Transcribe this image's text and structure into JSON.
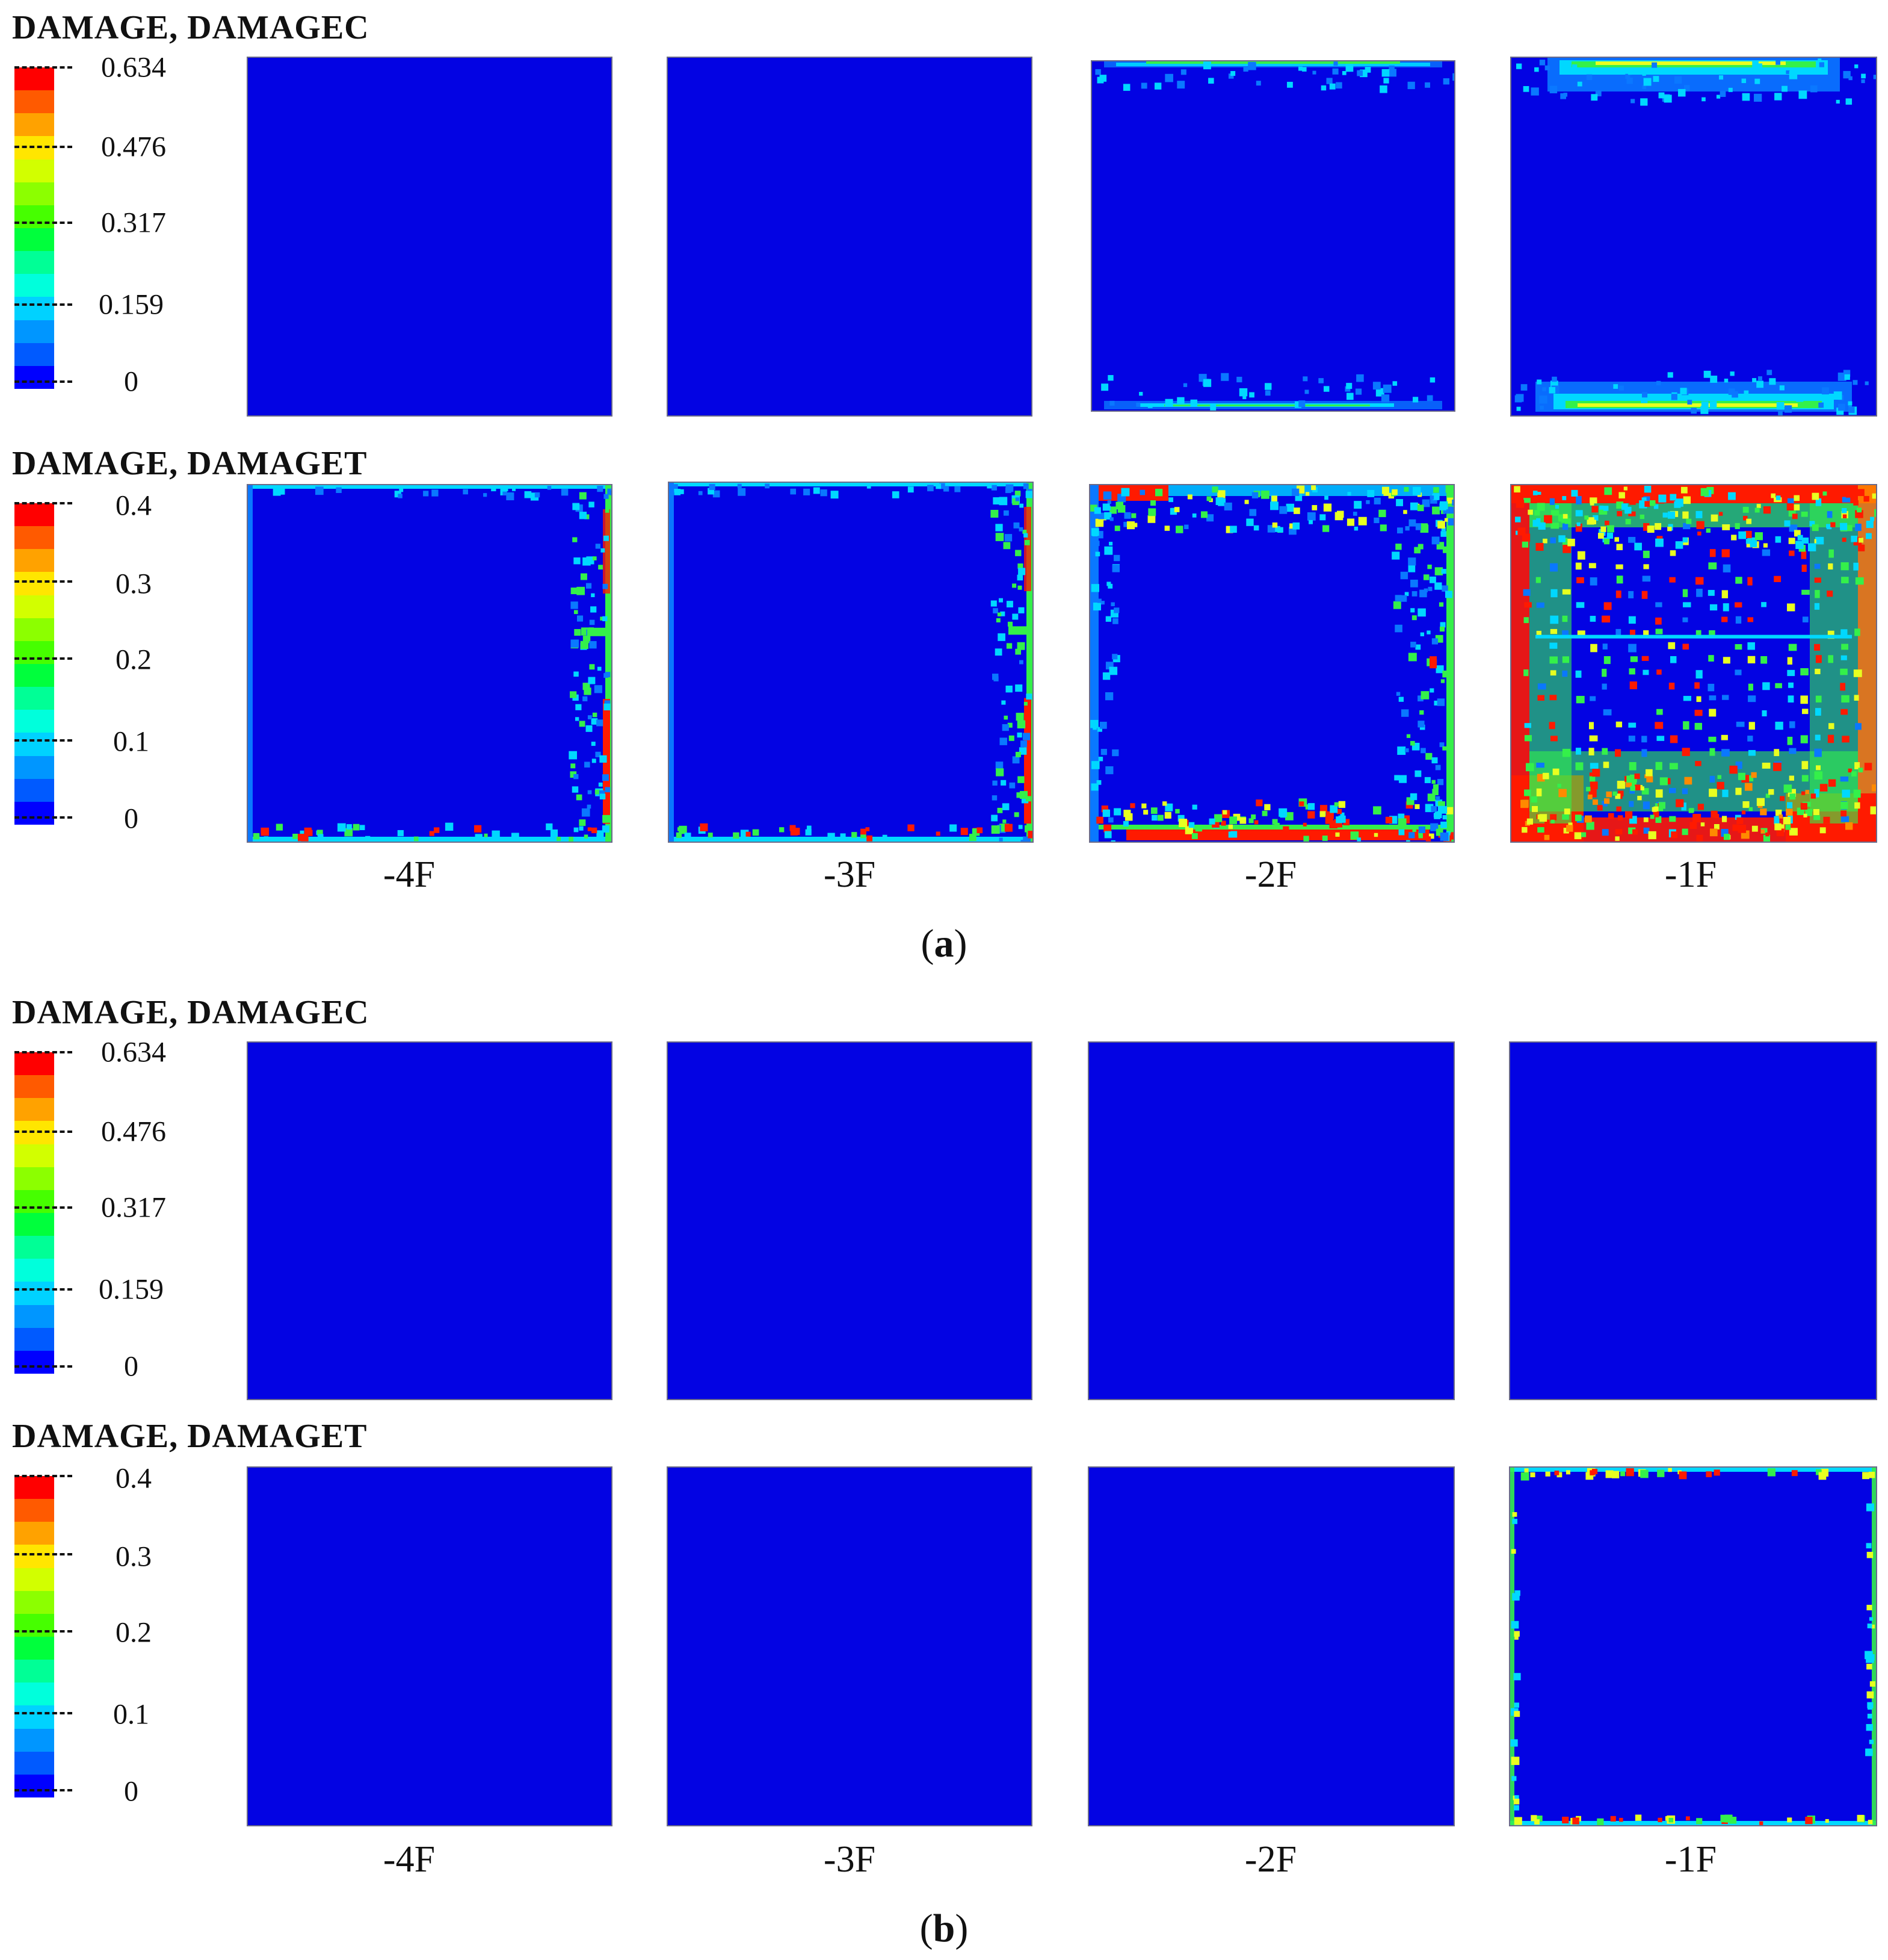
{
  "colormap": [
    "#ff0000",
    "#ff5a00",
    "#ffa200",
    "#ffe600",
    "#d2ff00",
    "#8cff00",
    "#46ff00",
    "#00ff3c",
    "#00ff96",
    "#00ffdc",
    "#00d2ff",
    "#0096ff",
    "#005aff",
    "#0000ff"
  ],
  "panel_blue": "#0303e3",
  "figure": {
    "subfigures": [
      {
        "label_text": "a",
        "columns": [
          "-4F",
          "-3F",
          "-2F",
          "-1F"
        ],
        "blocks": [
          {
            "title": "DAMAGE, DAMAGEC",
            "legend": [
              "0.634",
              "0.476",
              "0.317",
              "0.159",
              "0"
            ],
            "panels": [
              {
                "damage_pattern": "none"
              },
              {
                "damage_pattern": "none"
              },
              {
                "damage_pattern": "mild top and bottom edge bands"
              },
              {
                "damage_pattern": "strong top and bottom edge bands"
              }
            ]
          },
          {
            "title": "DAMAGE, DAMAGET",
            "legend": [
              "0.4",
              "0.3",
              "0.2",
              "0.1",
              "0"
            ],
            "panels": [
              {
                "damage_pattern": "thin border, right edge"
              },
              {
                "damage_pattern": "thin border, right edge"
              },
              {
                "damage_pattern": "border with scattered interior spots"
              },
              {
                "damage_pattern": "severe border and grid cracking"
              }
            ]
          }
        ]
      },
      {
        "label_text": "b",
        "columns": [
          "-4F",
          "-3F",
          "-2F",
          "-1F"
        ],
        "blocks": [
          {
            "title": "DAMAGE, DAMAGEC",
            "legend": [
              "0.634",
              "0.476",
              "0.317",
              "0.159",
              "0"
            ],
            "panels": [
              {
                "damage_pattern": "none"
              },
              {
                "damage_pattern": "none"
              },
              {
                "damage_pattern": "none"
              },
              {
                "damage_pattern": "none"
              }
            ]
          },
          {
            "title": "DAMAGE, DAMAGET",
            "legend": [
              "0.4",
              "0.3",
              "0.2",
              "0.1",
              "0"
            ],
            "panels": [
              {
                "damage_pattern": "none"
              },
              {
                "damage_pattern": "none"
              },
              {
                "damage_pattern": "none"
              },
              {
                "damage_pattern": "thin perimeter border"
              }
            ]
          }
        ]
      }
    ]
  }
}
